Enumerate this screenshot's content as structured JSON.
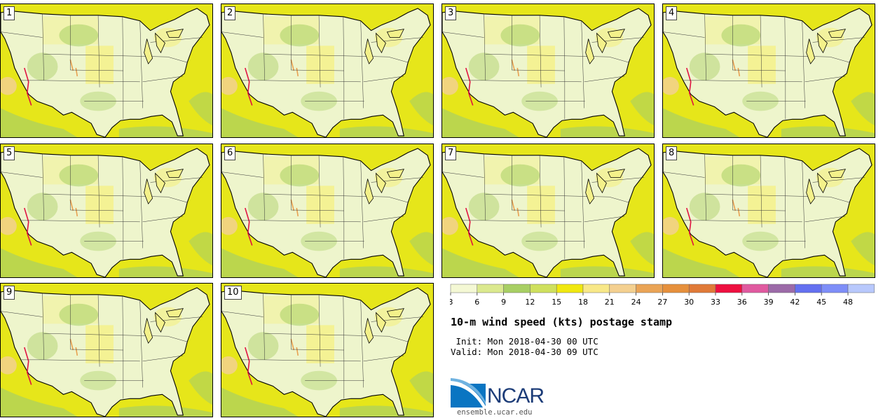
{
  "colors": {
    "ocean": "#e6e61a",
    "land": "#eef5cc",
    "mid": "#f4f18a",
    "green": "#a8cf64",
    "orange": "#e8a050",
    "red": "#e01040"
  },
  "panels": [
    {
      "label": "1"
    },
    {
      "label": "2"
    },
    {
      "label": "3"
    },
    {
      "label": "4"
    },
    {
      "label": "5"
    },
    {
      "label": "6"
    },
    {
      "label": "7"
    },
    {
      "label": "8"
    },
    {
      "label": "9"
    },
    {
      "label": "10"
    }
  ],
  "legend": {
    "colors": [
      "#f4f8d4",
      "#dbe98e",
      "#a8cf64",
      "#cfe05e",
      "#f0e810",
      "#f8e888",
      "#f4d090",
      "#eaa456",
      "#e6903c",
      "#e07a38",
      "#ee1040",
      "#e05aa0",
      "#9c6aa8",
      "#6470f0",
      "#7e8ef8",
      "#b8c8fc"
    ],
    "ticks": [
      "3",
      "6",
      "9",
      "12",
      "15",
      "18",
      "21",
      "24",
      "27",
      "30",
      "33",
      "36",
      "39",
      "42",
      "45",
      "48"
    ]
  },
  "title": "10-m wind speed (kts) postage stamp",
  "init": " Init: Mon 2018-04-30 00 UTC",
  "valid": "Valid: Mon 2018-04-30 09 UTC",
  "logo": {
    "text": "NCAR",
    "url": "ensemble.ucar.edu"
  }
}
